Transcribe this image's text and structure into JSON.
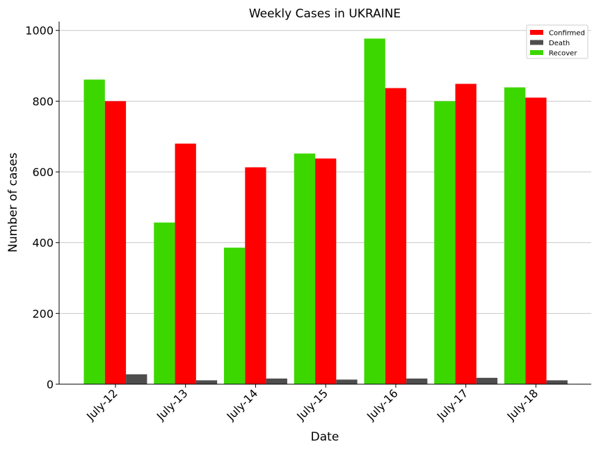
{
  "chart_data": {
    "type": "bar",
    "title": "Weekly Cases in UKRAINE",
    "xlabel": "Date",
    "ylabel": "Number of cases",
    "categories": [
      "July-12",
      "July-13",
      "July-14",
      "July-15",
      "July-16",
      "July-17",
      "July-18"
    ],
    "series": [
      {
        "name": "Recover",
        "color": "#3dd700",
        "values": [
          861,
          457,
          386,
          652,
          977,
          800,
          839
        ]
      },
      {
        "name": "Confirmed",
        "color": "#ff0000",
        "values": [
          800,
          680,
          613,
          638,
          837,
          849,
          810
        ]
      },
      {
        "name": "Death",
        "color": "#4d4d4d",
        "values": [
          28,
          11,
          16,
          13,
          16,
          18,
          11
        ]
      }
    ],
    "legend_order": [
      "Confirmed",
      "Death",
      "Recover"
    ],
    "legend_position": "top-right",
    "ylim": [
      0,
      1025
    ],
    "yticks": [
      0,
      200,
      400,
      600,
      800,
      1000
    ],
    "grid": "horizontal"
  }
}
